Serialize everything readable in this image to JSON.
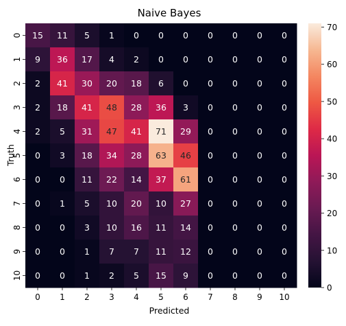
{
  "chart_data": {
    "type": "heatmap",
    "title": "Naive Bayes",
    "xlabel": "Predicted",
    "ylabel": "Truth",
    "x_categories": [
      "0",
      "1",
      "2",
      "3",
      "4",
      "5",
      "6",
      "7",
      "8",
      "9",
      "10"
    ],
    "y_categories": [
      "0",
      "1",
      "2",
      "3",
      "4",
      "5",
      "6",
      "7",
      "8",
      "9",
      "10"
    ],
    "values": [
      [
        15,
        11,
        5,
        1,
        0,
        0,
        0,
        0,
        0,
        0,
        0
      ],
      [
        9,
        36,
        17,
        4,
        2,
        0,
        0,
        0,
        0,
        0,
        0
      ],
      [
        2,
        41,
        30,
        20,
        18,
        6,
        0,
        0,
        0,
        0,
        0
      ],
      [
        2,
        18,
        41,
        48,
        28,
        36,
        3,
        0,
        0,
        0,
        0
      ],
      [
        2,
        5,
        31,
        47,
        41,
        71,
        29,
        0,
        0,
        0,
        0
      ],
      [
        0,
        3,
        18,
        34,
        28,
        63,
        46,
        0,
        0,
        0,
        0
      ],
      [
        0,
        0,
        11,
        22,
        14,
        37,
        61,
        0,
        0,
        0,
        0
      ],
      [
        0,
        1,
        5,
        10,
        20,
        10,
        27,
        0,
        0,
        0,
        0
      ],
      [
        0,
        0,
        3,
        10,
        16,
        11,
        14,
        0,
        0,
        0,
        0
      ],
      [
        0,
        0,
        1,
        7,
        7,
        11,
        12,
        0,
        0,
        0,
        0
      ],
      [
        0,
        0,
        1,
        2,
        5,
        15,
        9,
        0,
        0,
        0,
        0
      ]
    ],
    "vmin": 0,
    "vmax": 71,
    "colormap": "rocket",
    "colorbar_ticks": [
      0,
      10,
      20,
      30,
      40,
      50,
      60,
      70
    ]
  }
}
